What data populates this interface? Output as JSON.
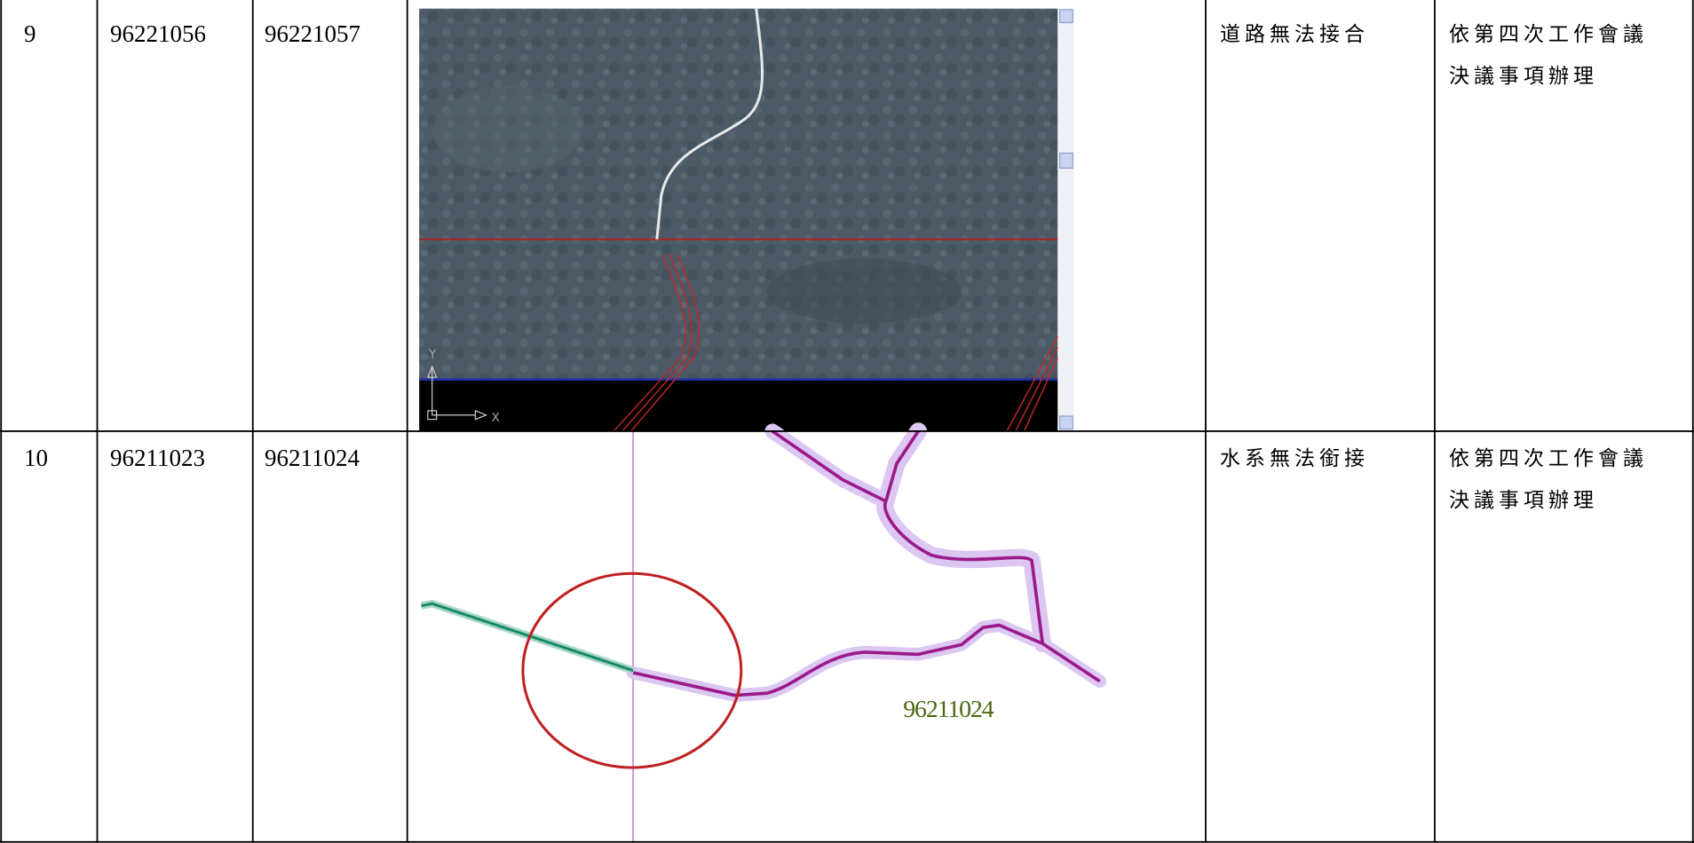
{
  "table": {
    "rows": [
      {
        "no": "9",
        "sheet_a": "96221056",
        "sheet_b": "96221057",
        "image": {
          "axis_y": "Y",
          "axis_x": "X"
        },
        "issue": "道路無法接合",
        "resolution": "依第四次工作會議決議事項辦理"
      },
      {
        "no": "10",
        "sheet_a": "96211023",
        "sheet_b": "96211024",
        "image": {
          "label": "96211024"
        },
        "issue": "水系無法銜接",
        "resolution": "依第四次工作會議決議事項辦理"
      }
    ]
  }
}
